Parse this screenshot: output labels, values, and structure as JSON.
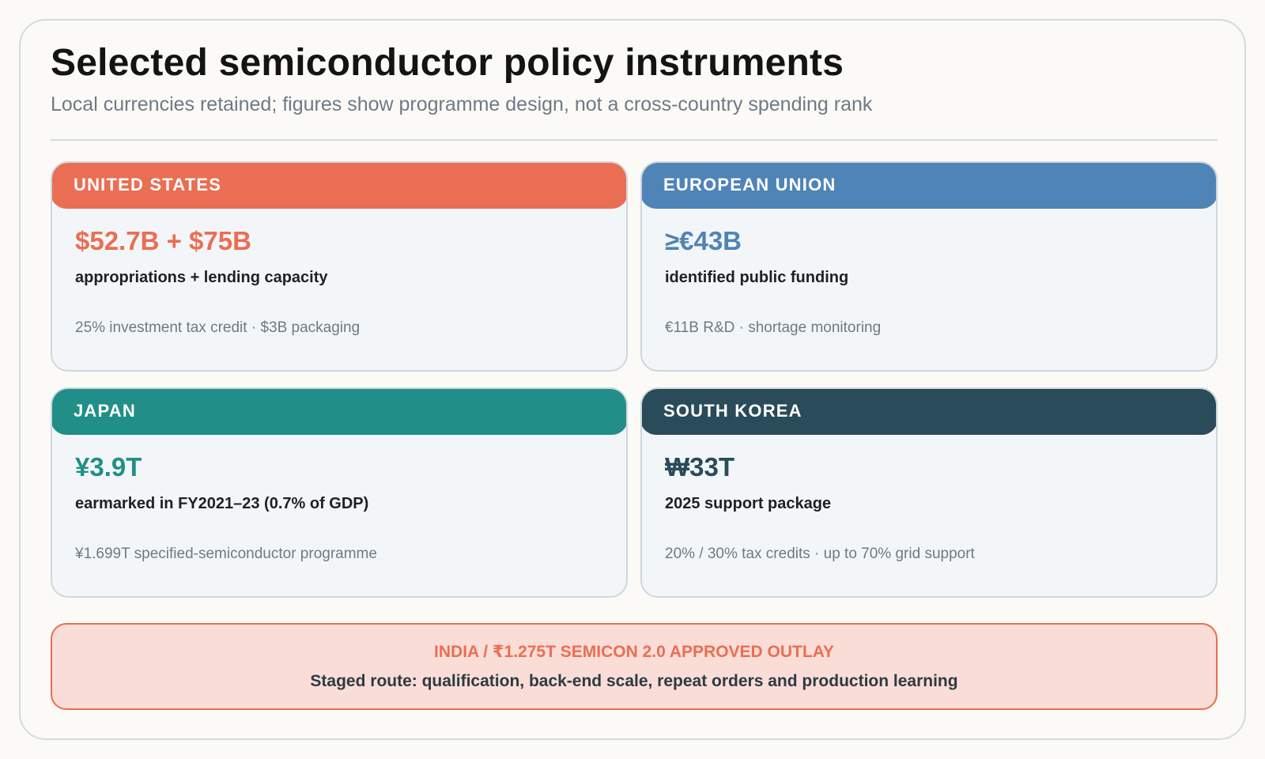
{
  "header": {
    "title": "Selected semiconductor policy instruments",
    "subtitle": "Local currencies retained; figures show programme design, not a cross-country spending rank"
  },
  "cards": [
    {
      "region": "UNITED STATES",
      "value": "$52.7B + $75B",
      "description": "appropriations + lending capacity",
      "detail": "25% investment tax credit · $3B packaging",
      "accent": "#ea6e53"
    },
    {
      "region": "EUROPEAN UNION",
      "value": "≥€43B",
      "description": "identified public funding",
      "detail": "€11B R&D · shortage monitoring",
      "accent": "#4f84b6"
    },
    {
      "region": "JAPAN",
      "value": "¥3.9T",
      "description": "earmarked in FY2021–23 (0.7% of GDP)",
      "detail": "¥1.699T specified-semiconductor programme",
      "accent": "#218f87"
    },
    {
      "region": "SOUTH KOREA",
      "value": "₩33T",
      "description": "2025 support package",
      "detail": "20% / 30% tax credits · up to 70% grid support",
      "accent": "#2a4b59"
    }
  ],
  "callout": {
    "heading": "INDIA / ₹1.275T SEMICON 2.0 APPROVED OUTLAY",
    "text": "Staged route: qualification, back-end scale, repeat orders and production learning",
    "accent": "#ea6e53"
  }
}
